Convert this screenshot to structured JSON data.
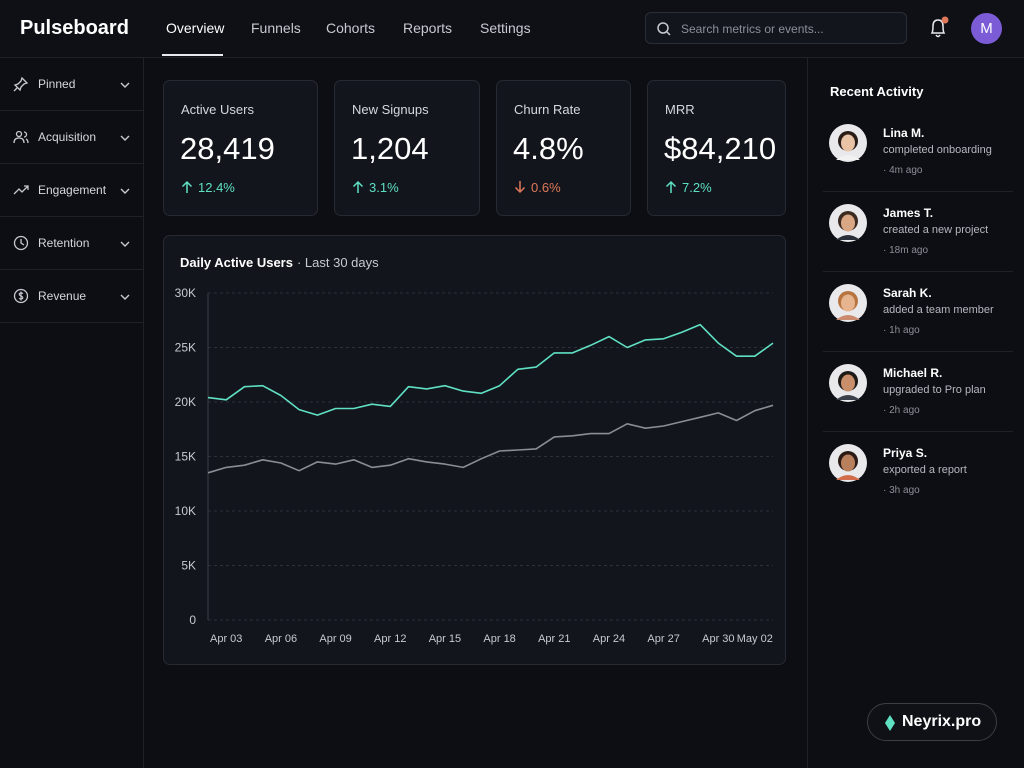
{
  "app": {
    "logo": "Pulseboard",
    "nav": [
      "Overview",
      "Funnels",
      "Cohorts",
      "Reports",
      "Settings"
    ],
    "active_nav_index": 0,
    "search_placeholder": "Search metrics or events...",
    "avatar_initial": "M"
  },
  "sidebar": [
    "Pinned",
    "Acquisition",
    "Engagement",
    "Retention",
    "Revenue"
  ],
  "kpis": [
    {
      "label": "Active Users",
      "value": "28,419",
      "change": "12.4%",
      "trend": "up"
    },
    {
      "label": "New Signups",
      "value": "1,204",
      "change": "3.1%",
      "trend": "up"
    },
    {
      "label": "Churn Rate",
      "value": "4.8%",
      "change": "0.6%",
      "trend": "down"
    },
    {
      "label": "MRR",
      "value": "$84,210",
      "change": "7.2%",
      "trend": "up"
    }
  ],
  "chart_data": {
    "type": "line",
    "title": "Daily Active Users",
    "subtitle": "· Last 30 days",
    "categories": [
      null,
      "Apr 03",
      null,
      null,
      "Apr 06",
      null,
      null,
      "Apr 09",
      null,
      null,
      "Apr 12",
      null,
      null,
      "Apr 15",
      null,
      null,
      "Apr 18",
      null,
      null,
      "Apr 21",
      null,
      null,
      "Apr 24",
      null,
      null,
      "Apr 27",
      null,
      null,
      "Apr 30",
      null,
      "May 02",
      null
    ],
    "series": [
      {
        "color": "#5fe0c3",
        "values": [
          20400,
          20200,
          21400,
          21500,
          20600,
          19300,
          18800,
          19400,
          19400,
          19800,
          19600,
          21400,
          21200,
          21500,
          21000,
          20800,
          21500,
          23000,
          23200,
          24500,
          24500,
          25200,
          26000,
          25000,
          25700,
          25800,
          26400,
          27100,
          25400,
          24200,
          24200,
          25400
        ]
      },
      {
        "color": "#8a8d94",
        "values": [
          13500,
          14000,
          14200,
          14700,
          14400,
          13700,
          14500,
          14300,
          14700,
          14000,
          14200,
          14800,
          14500,
          14300,
          14000,
          14800,
          15500,
          15600,
          15700,
          16800,
          16900,
          17100,
          17100,
          18000,
          17600,
          17800,
          18200,
          18600,
          19000,
          18300,
          19200,
          19700
        ]
      }
    ],
    "ylim": [
      0,
      30000
    ],
    "yticks": [
      0,
      {
        "value": 5000,
        "label": "5K"
      },
      {
        "value": 10000,
        "label": "10K"
      },
      {
        "value": 15000,
        "label": "15K"
      },
      {
        "value": 20000,
        "label": "20K"
      },
      {
        "value": 25000,
        "label": "25K"
      },
      {
        "value": 30000,
        "label": "30K"
      }
    ],
    "grid": true
  },
  "activity": {
    "title": "Recent Activity",
    "items": [
      {
        "name": "Lina M.",
        "action": "completed onboarding",
        "time": "· 4m ago"
      },
      {
        "name": "James T.",
        "action": "created a new project",
        "time": "· 18m ago"
      },
      {
        "name": "Sarah K.",
        "action": "added a team member",
        "time": "· 1h ago"
      },
      {
        "name": "Michael R.",
        "action": "upgraded to Pro plan",
        "time": "· 2h ago"
      },
      {
        "name": "Priya S.",
        "action": "exported a report",
        "time": "· 3h ago"
      }
    ]
  },
  "badge": "Neyrix.pro"
}
